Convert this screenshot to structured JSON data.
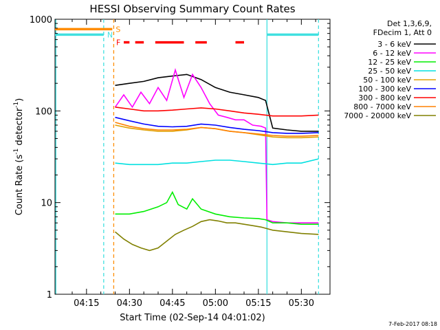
{
  "chart_data": {
    "type": "line",
    "title": "HESSI Observing Summary Count Rates",
    "xlabel": "Start Time (02-Sep-14 04:01:02)",
    "ylabel_main": "Count Rate (s",
    "ylabel_sup1": "-1",
    "ylabel_mid": " detector",
    "ylabel_sup2": "-1",
    "ylabel_end": ")",
    "yscale": "log",
    "ylim": [
      1,
      1000
    ],
    "xlim_minutes": [
      4.0,
      100.0
    ],
    "x_ticks": [
      {
        "label": "04:15",
        "minute": 15
      },
      {
        "label": "04:30",
        "minute": 30
      },
      {
        "label": "04:45",
        "minute": 45
      },
      {
        "label": "05:00",
        "minute": 60
      },
      {
        "label": "05:15",
        "minute": 75
      },
      {
        "label": "05:30",
        "minute": 90
      }
    ],
    "y_ticks": [
      {
        "label": "1",
        "value": 1
      },
      {
        "label": "10",
        "value": 10
      },
      {
        "label": "100",
        "value": 100
      },
      {
        "label": "1000",
        "value": 1000
      }
    ],
    "legend_header": [
      "Det 1,3,6,9,",
      "FDecim 1, Att 0"
    ],
    "footer_date": "7-Feb-2017 08:18",
    "flags": {
      "S": {
        "label": "S",
        "color": "#ff8c00",
        "segments": [
          [
            4,
            24
          ]
        ],
        "level": 780
      },
      "N": {
        "label": "N",
        "color": "#40e0e0",
        "segments": [
          [
            4,
            21
          ],
          [
            78,
            96
          ]
        ],
        "level": 680
      },
      "F": {
        "label": "F",
        "color": "#ff0000",
        "segments": [
          [
            28,
            30
          ],
          [
            32,
            35
          ],
          [
            39,
            49
          ],
          [
            53,
            57
          ],
          [
            67,
            70
          ]
        ],
        "level": 560
      }
    },
    "vertical_markers": [
      {
        "minute": 4.3,
        "color": "#40e0e0",
        "style": "solid"
      },
      {
        "minute": 21.0,
        "color": "#40e0e0",
        "style": "dashed"
      },
      {
        "minute": 24.5,
        "color": "#ff8c00",
        "style": "dashed"
      },
      {
        "minute": 78.0,
        "color": "#40e0e0",
        "style": "solid"
      },
      {
        "minute": 96.0,
        "color": "#40e0e0",
        "style": "dashed"
      }
    ],
    "series": [
      {
        "name": "3 - 6 keV",
        "color": "#000000",
        "x": [
          25,
          30,
          35,
          40,
          45,
          50,
          55,
          60,
          65,
          70,
          75,
          77.5,
          80,
          85,
          90,
          95,
          96
        ],
        "y": [
          190,
          200,
          210,
          230,
          240,
          250,
          220,
          180,
          160,
          150,
          140,
          130,
          65,
          62,
          60,
          60,
          60
        ]
      },
      {
        "name": "6 - 12 keV",
        "color": "#ff00ff",
        "x": [
          25,
          28,
          31,
          34,
          37,
          40,
          43,
          46,
          49,
          52,
          55,
          58,
          61,
          64,
          67,
          70,
          73,
          76,
          77.5,
          78,
          80,
          85,
          90,
          96
        ],
        "y": [
          110,
          150,
          110,
          160,
          120,
          180,
          130,
          280,
          140,
          250,
          180,
          120,
          90,
          85,
          80,
          80,
          70,
          68,
          65,
          6.5,
          6.2,
          6.0,
          6.0,
          6.0
        ]
      },
      {
        "name": "12 - 25 keV",
        "color": "#00ee00",
        "x": [
          25,
          30,
          35,
          40,
          43,
          45,
          47,
          50,
          52,
          55,
          60,
          65,
          70,
          75,
          77.5,
          80,
          85,
          90,
          96
        ],
        "y": [
          7.5,
          7.5,
          8.0,
          9.0,
          10.0,
          13.0,
          9.5,
          8.5,
          11.0,
          8.5,
          7.5,
          7.0,
          6.8,
          6.7,
          6.5,
          6.0,
          6.0,
          5.8,
          5.8
        ]
      },
      {
        "name": "25 - 50 keV",
        "color": "#00e0e0",
        "x": [
          25,
          30,
          35,
          40,
          45,
          50,
          55,
          60,
          65,
          70,
          75,
          80,
          85,
          90,
          96
        ],
        "y": [
          27,
          26,
          26,
          26,
          27,
          27,
          28,
          29,
          29,
          28,
          27,
          26,
          27,
          27,
          30
        ]
      },
      {
        "name": "50 - 100 keV",
        "color": "#e0a000",
        "x": [
          25,
          30,
          35,
          40,
          45,
          50,
          55,
          60,
          65,
          70,
          75,
          80,
          85,
          90,
          96
        ],
        "y": [
          70,
          65,
          62,
          60,
          60,
          62,
          66,
          64,
          60,
          58,
          55,
          52,
          51,
          51,
          52
        ]
      },
      {
        "name": "100 - 300 keV",
        "color": "#0000ff",
        "x": [
          25,
          30,
          35,
          40,
          45,
          50,
          55,
          60,
          65,
          70,
          75,
          80,
          85,
          90,
          96
        ],
        "y": [
          85,
          78,
          72,
          68,
          67,
          68,
          72,
          70,
          66,
          63,
          61,
          58,
          57,
          57,
          58
        ]
      },
      {
        "name": "300 - 800 keV",
        "color": "#ff0000",
        "x": [
          25,
          30,
          35,
          40,
          45,
          50,
          55,
          60,
          65,
          70,
          75,
          80,
          85,
          90,
          96
        ],
        "y": [
          110,
          105,
          100,
          100,
          102,
          105,
          108,
          105,
          100,
          95,
          92,
          88,
          88,
          88,
          90
        ]
      },
      {
        "name": "800 - 7000 keV",
        "color": "#ff8000",
        "x": [
          25,
          30,
          35,
          40,
          45,
          50,
          55,
          60,
          65,
          70,
          75,
          80,
          85,
          90,
          96
        ],
        "y": [
          75,
          68,
          64,
          62,
          62,
          63,
          66,
          64,
          60,
          58,
          56,
          54,
          53,
          53,
          54
        ]
      },
      {
        "name": "7000 - 20000 keV",
        "color": "#808000",
        "x": [
          25,
          28,
          31,
          34,
          37,
          40,
          43,
          46,
          49,
          52,
          55,
          58,
          61,
          64,
          67,
          70,
          73,
          76,
          80,
          85,
          90,
          96
        ],
        "y": [
          4.8,
          4.0,
          3.5,
          3.2,
          3.0,
          3.2,
          3.8,
          4.5,
          5.0,
          5.5,
          6.2,
          6.5,
          6.3,
          6.0,
          6.0,
          5.8,
          5.6,
          5.4,
          5.0,
          4.8,
          4.6,
          4.5
        ]
      }
    ]
  }
}
